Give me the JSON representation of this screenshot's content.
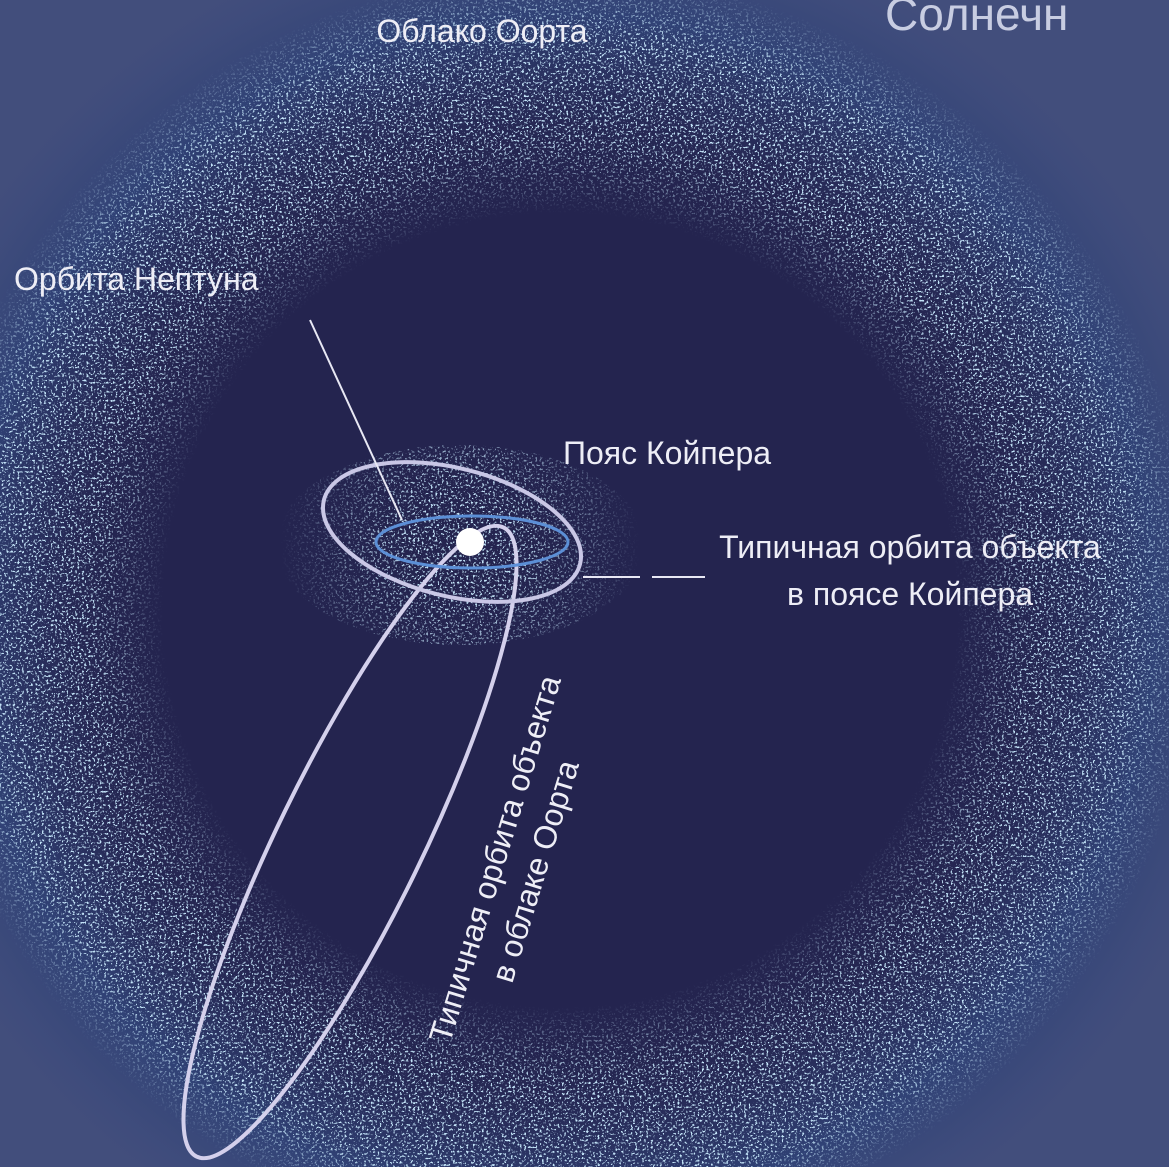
{
  "title": "Солнечн",
  "labels": {
    "oort_cloud": "Облако Оорта",
    "neptune_orbit": "Орбита Нептуна",
    "kuiper_belt": "Пояс Койпера",
    "kuiper_object_orbit": [
      "Типичная орбита объекта",
      "в поясе Койпера"
    ],
    "oort_object_orbit": [
      "Типичная орбита объекта",
      "в облаке Оорта"
    ]
  }
}
